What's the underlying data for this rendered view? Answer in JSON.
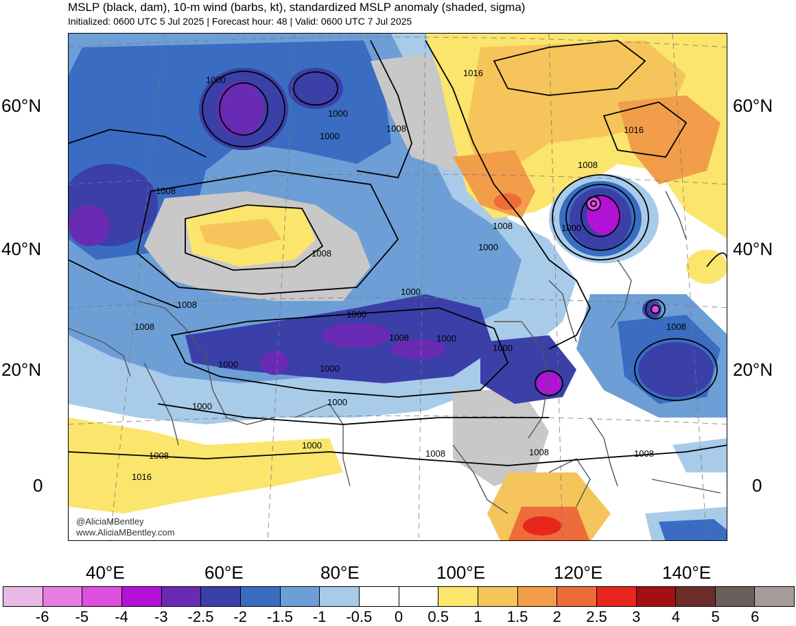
{
  "header": {
    "title": "MSLP (black, dam), 10-m wind (barbs, kt), standardized MSLP anomaly (shaded, sigma)",
    "subtitle": "Initialized: 0600 UTC 5 Jul 2025 | Forecast hour: 48 | Valid: 0600 UTC 7 Jul 2025"
  },
  "axes": {
    "lat_left": [
      "60°N",
      "40°N",
      "20°N",
      "0"
    ],
    "lat_right": [
      "60°N",
      "40°N",
      "20°N",
      "0"
    ],
    "lon": [
      "40°E",
      "60°E",
      "80°E",
      "100°E",
      "120°E",
      "140°E"
    ]
  },
  "credit": {
    "handle": "@AliciaMBentley",
    "website": "www.AliciaMBentley.com"
  },
  "isobar_labels": [
    "1016",
    "1000",
    "1000",
    "1000",
    "1008",
    "1008",
    "1016",
    "1008",
    "1008",
    "1000",
    "1008",
    "1000",
    "1000",
    "1000",
    "1008",
    "1000",
    "1000",
    "1000",
    "1000",
    "1000",
    "1008",
    "1008",
    "1000",
    "1000",
    "1008",
    "1008",
    "1016",
    "1008",
    "1008",
    "1008"
  ],
  "colorbar": {
    "colors": [
      "#e9b9e6",
      "#e87de3",
      "#dd4fdd",
      "#b211d6",
      "#6a2bb4",
      "#3b3fa8",
      "#3a6cc2",
      "#6d9fd6",
      "#a8cbe9",
      "#ffffff",
      "#ffffff",
      "#fbe56c",
      "#f5c45a",
      "#f29d4a",
      "#ee6b3a",
      "#e7271d",
      "#a30f12",
      "#6e2d2a",
      "#6b5f5c",
      "#a69b98"
    ],
    "ticks": [
      "-6",
      "-5",
      "-4",
      "-3",
      "-2.5",
      "-2",
      "-1.5",
      "-1",
      "-0.5",
      "0",
      "0.5",
      "1",
      "1.5",
      "2",
      "2.5",
      "3",
      "4",
      "5",
      "6"
    ]
  }
}
